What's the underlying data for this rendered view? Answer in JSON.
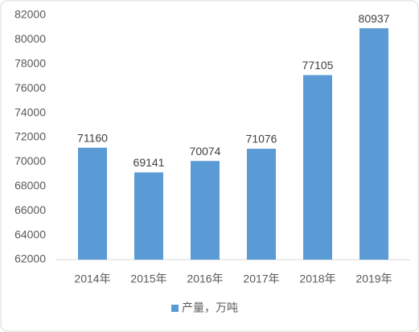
{
  "chart_data": {
    "type": "bar",
    "categories": [
      "2014年",
      "2015年",
      "2016年",
      "2017年",
      "2018年",
      "2019年"
    ],
    "series": [
      {
        "name": "产量，万吨",
        "color": "#5b9bd5",
        "values": [
          71160,
          69141,
          70074,
          71076,
          77105,
          80937
        ]
      }
    ],
    "ylim": [
      62000,
      82000
    ],
    "yticks": [
      62000,
      64000,
      66000,
      68000,
      70000,
      72000,
      74000,
      76000,
      78000,
      80000,
      82000
    ],
    "grid": false,
    "legend": "bottom"
  }
}
